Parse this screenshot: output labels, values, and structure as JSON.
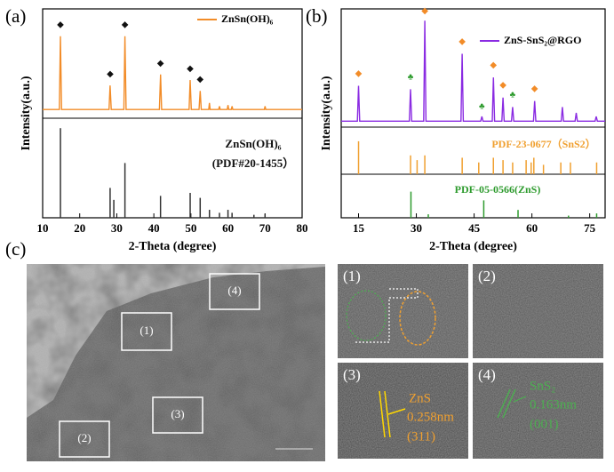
{
  "figure_labels": [
    "(a)",
    "(b)",
    "(c)"
  ],
  "chart_data": [
    {
      "type": "line",
      "y_title": "Intensity(a.u.)",
      "x_title": "2-Theta (degree)",
      "xlim": [
        10,
        80
      ],
      "xticks": [
        10,
        20,
        30,
        40,
        50,
        60,
        70,
        80
      ],
      "ylim": [
        0,
        100
      ],
      "series": [
        {
          "name": "ZnSn(OH)₆",
          "color": "#f28c28",
          "x": [
            10,
            14.5,
            14.8,
            15.1,
            27.9,
            28.2,
            28.5,
            31.9,
            32.2,
            32.5,
            41.5,
            41.8,
            42.1,
            49.5,
            49.8,
            50.1,
            52.2,
            52.5,
            52.8,
            54.8,
            55,
            55.2,
            57.5,
            57.7,
            57.9,
            59.8,
            60,
            60.2,
            60.9,
            61.1,
            61.3,
            69.8,
            70,
            70.2,
            80
          ],
          "values": [
            8,
            8,
            75,
            8,
            8,
            30,
            8,
            8,
            75,
            8,
            8,
            40,
            8,
            8,
            35,
            8,
            8,
            25,
            8,
            8,
            14,
            8,
            8,
            11,
            8,
            8,
            12,
            8,
            8,
            11,
            8,
            8,
            11,
            8,
            8
          ]
        }
      ],
      "markers": [
        {
          "symbol": "◆",
          "color": "#111111",
          "x": [
            14.8,
            28.2,
            32.2,
            41.8,
            49.8,
            52.5
          ],
          "y": [
            85,
            40,
            85,
            50,
            45,
            35
          ]
        }
      ],
      "references": [
        {
          "label": [
            "ZnSn(OH)₆",
            "(PDF#20-1455）"
          ],
          "color": "#333333",
          "x": [
            14.8,
            28.2,
            29.2,
            32.2,
            41.8,
            49.8,
            52.5,
            55,
            57.7,
            60,
            61.1,
            67,
            70
          ],
          "values": [
            90,
            30,
            18,
            55,
            22,
            25,
            20,
            8,
            5,
            8,
            5,
            3,
            4
          ]
        }
      ]
    },
    {
      "type": "line",
      "y_title": "Intensity(a.u.)",
      "x_title": "2-Theta (degree)",
      "xlim": [
        10.5,
        79
      ],
      "xticks": [
        15,
        30,
        45,
        60,
        75
      ],
      "ylim": [
        0,
        100
      ],
      "series": [
        {
          "name": "ZnS-SnS₂@RGO",
          "color": "#8a2be2",
          "x": [
            10.5,
            14.7,
            15,
            15.3,
            28.2,
            28.5,
            28.8,
            31.9,
            32.2,
            32.5,
            41.6,
            41.9,
            42.2,
            46.7,
            47,
            47.3,
            49.7,
            50,
            50.3,
            52.2,
            52.5,
            52.8,
            54.7,
            55,
            55.3,
            60.4,
            60.7,
            61,
            67.6,
            67.9,
            68.2,
            71.2,
            71.5,
            71.8,
            76.4,
            76.7,
            77,
            79
          ],
          "values": [
            5,
            5,
            35,
            5,
            5,
            32,
            5,
            5,
            90,
            5,
            5,
            62,
            5,
            5,
            9,
            5,
            5,
            42,
            5,
            5,
            25,
            5,
            5,
            17,
            5,
            5,
            22,
            5,
            5,
            17,
            5,
            5,
            12,
            5,
            5,
            9,
            5,
            5
          ]
        }
      ],
      "markers": [
        {
          "symbol": "◆",
          "color": "#f28c28",
          "x": [
            15,
            32.2,
            41.9,
            50,
            52.5,
            60.7
          ],
          "y": [
            45,
            98,
            72,
            52,
            35,
            32
          ]
        },
        {
          "symbol": "♣",
          "color": "#2e9b2e",
          "x": [
            28.5,
            47,
            55
          ],
          "y": [
            42,
            17,
            27
          ]
        }
      ],
      "references": [
        {
          "label": [
            "PDF-23-0677（SnS2）"
          ],
          "color": "#f0a030",
          "x": [
            15,
            28.5,
            30.2,
            32.2,
            41.9,
            46.2,
            50,
            52.5,
            55,
            58.5,
            59.8,
            60.5,
            63,
            67.5,
            70,
            76.8
          ],
          "values": [
            70,
            40,
            30,
            40,
            35,
            25,
            35,
            30,
            25,
            30,
            25,
            35,
            20,
            25,
            25,
            25
          ]
        },
        {
          "label": [
            "PDF-05-0566(ZnS)"
          ],
          "color": "#2e9b2e",
          "x": [
            28.6,
            33.1,
            47.5,
            56.4,
            69.5,
            76.8
          ],
          "values": [
            60,
            8,
            40,
            18,
            5,
            10
          ]
        }
      ]
    }
  ],
  "micrograph": {
    "regions": [
      "(1)",
      "(2)",
      "(3)",
      "(4)"
    ],
    "insets": [
      {
        "label": "(1)"
      },
      {
        "label": "(2)"
      },
      {
        "label": "(3)",
        "phase": "ZnS",
        "d_spacing": "0.258nm",
        "plane": "(311)"
      },
      {
        "label": "(4)",
        "phase": "SnS₂",
        "d_spacing": "0.163nm",
        "plane": "(001)"
      }
    ]
  }
}
